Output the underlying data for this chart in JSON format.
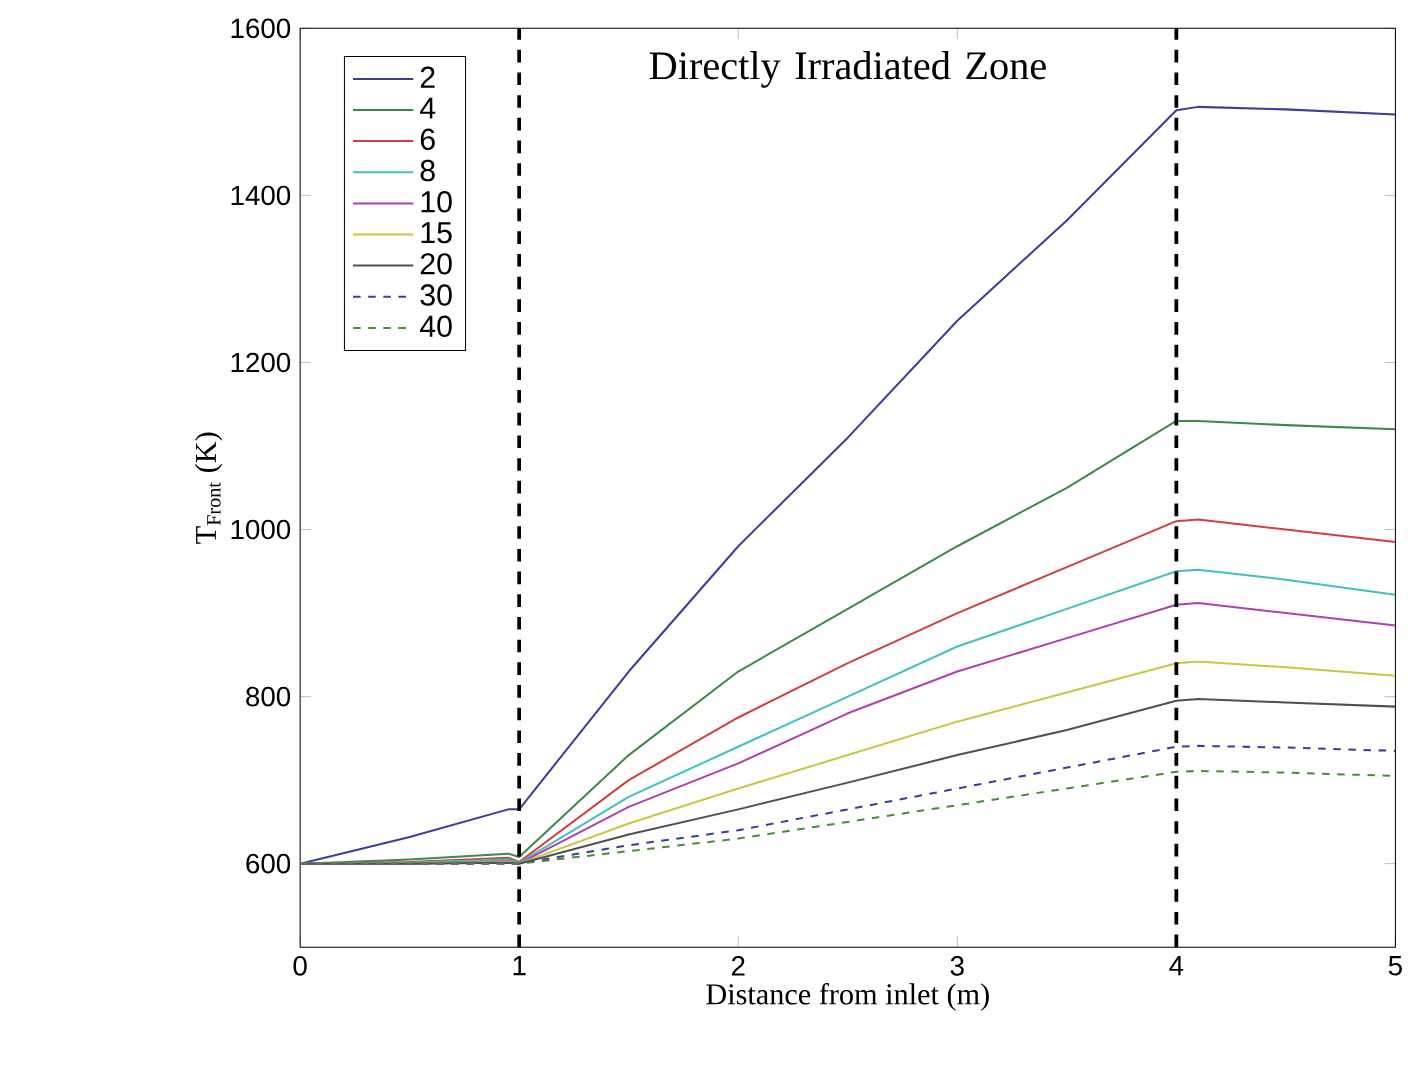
{
  "chart_data": {
    "type": "line",
    "xlabel": "Distance from inlet (m)",
    "ylabel": "T$_{Front}$ (K)",
    "xlim": [
      0,
      5
    ],
    "ylim": [
      500,
      1600
    ],
    "xticks": [
      0,
      1,
      2,
      3,
      4,
      5
    ],
    "yticks": [
      600,
      800,
      1000,
      1200,
      1400,
      1600
    ],
    "legend": "top left",
    "grid": false,
    "marker": "none",
    "annotations": [
      "Directly Irradiated Zone"
    ],
    "ref_lines": [
      {
        "axis": "x",
        "value": 1,
        "color": "#000000",
        "line_style": "dashed"
      },
      {
        "axis": "x",
        "value": 4,
        "color": "#000000",
        "line_style": "dashed"
      }
    ],
    "x": [
      0,
      0.5,
      0.95,
      1,
      1.5,
      2,
      2.5,
      3,
      3.5,
      4,
      4.1,
      4.5,
      5
    ],
    "series": [
      {
        "name": "2",
        "color": "#3c3c9c",
        "line_style": "solid",
        "values": [
          600,
          632,
          665,
          665,
          830,
          980,
          1110,
          1250,
          1370,
          1502,
          1506,
          1503,
          1497
        ]
      },
      {
        "name": "4",
        "color": "#3a8a4a",
        "line_style": "solid",
        "values": [
          600,
          605,
          612,
          608,
          730,
          830,
          905,
          980,
          1050,
          1130,
          1130,
          1125,
          1120
        ]
      },
      {
        "name": "6",
        "color": "#d04040",
        "line_style": "solid",
        "values": [
          600,
          602,
          607,
          602,
          700,
          775,
          840,
          900,
          955,
          1010,
          1012,
          1000,
          985
        ]
      },
      {
        "name": "8",
        "color": "#40c0c0",
        "line_style": "solid",
        "values": [
          600,
          601,
          605,
          601,
          680,
          740,
          800,
          860,
          905,
          950,
          952,
          940,
          922
        ]
      },
      {
        "name": "10",
        "color": "#b040b0",
        "line_style": "solid",
        "values": [
          600,
          600,
          603,
          600,
          668,
          720,
          780,
          830,
          870,
          910,
          912,
          900,
          885
        ]
      },
      {
        "name": "15",
        "color": "#c8c840",
        "line_style": "solid",
        "values": [
          600,
          600,
          602,
          600,
          648,
          690,
          730,
          770,
          805,
          840,
          842,
          835,
          825
        ]
      },
      {
        "name": "20",
        "color": "#505050",
        "line_style": "solid",
        "values": [
          600,
          600,
          601,
          600,
          635,
          665,
          697,
          730,
          760,
          795,
          797,
          793,
          788
        ]
      },
      {
        "name": "30",
        "color": "#3c3c9c",
        "line_style": "dashed",
        "values": [
          600,
          600,
          600,
          600,
          622,
          640,
          665,
          690,
          715,
          740,
          741,
          739,
          735
        ]
      },
      {
        "name": "40",
        "color": "#4a8a3a",
        "line_style": "dashed",
        "values": [
          600,
          600,
          600,
          600,
          615,
          630,
          650,
          670,
          690,
          710,
          711,
          709,
          705
        ]
      }
    ]
  }
}
